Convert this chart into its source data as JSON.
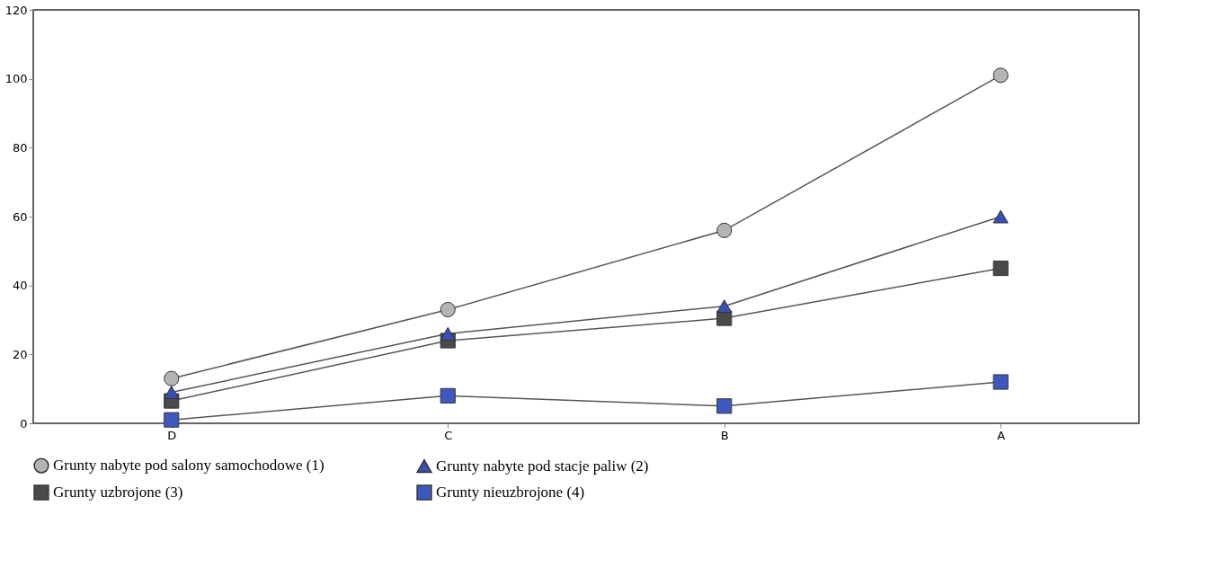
{
  "chart_data": {
    "type": "line",
    "categories": [
      "D",
      "C",
      "B",
      "A"
    ],
    "ylim": [
      0,
      120
    ],
    "yticks": [
      0,
      20,
      40,
      60,
      80,
      100,
      120
    ],
    "grid": false,
    "legend": "bottom",
    "series": [
      {
        "name": "Grunty nabyte pod salony samochodowe (1)",
        "color": "#b4b4b4",
        "marker": "circle",
        "values": [
          13,
          33,
          56,
          101
        ]
      },
      {
        "name": "Grunty nabyte pod stacje paliw (2)",
        "color": "#3a4fb4",
        "marker": "triangle",
        "values": [
          9,
          26,
          34,
          60
        ]
      },
      {
        "name": "Grunty uzbrojone (3)",
        "color": "#4a4a4a",
        "marker": "square",
        "values": [
          6.5,
          24,
          30.5,
          45
        ]
      },
      {
        "name": "Grunty nieuzbrojone (4)",
        "color": "#3d58c0",
        "marker": "square",
        "values": [
          1,
          8,
          5,
          12
        ]
      }
    ]
  }
}
